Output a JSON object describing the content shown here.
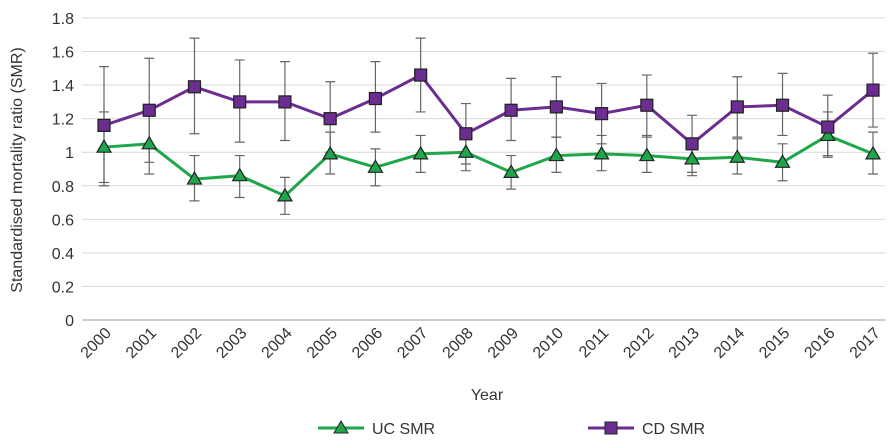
{
  "chart_data": {
    "type": "line",
    "x_label": "Year",
    "y_label": "Standardised mortality ratio (SMR)",
    "categories": [
      "2000",
      "2001",
      "2002",
      "2003",
      "2004",
      "2005",
      "2006",
      "2007",
      "2008",
      "2009",
      "2010",
      "2011",
      "2012",
      "2013",
      "2014",
      "2015",
      "2016",
      "2017"
    ],
    "series": [
      {
        "name": "UC SMR",
        "color": "#1fa64a",
        "marker": "triangle",
        "values": [
          1.03,
          1.05,
          0.84,
          0.86,
          0.74,
          0.99,
          0.91,
          0.99,
          1.0,
          0.88,
          0.98,
          0.99,
          0.98,
          0.96,
          0.97,
          0.94,
          1.1,
          0.99
        ],
        "lower": [
          0.82,
          0.87,
          0.71,
          0.73,
          0.63,
          0.87,
          0.8,
          0.88,
          0.89,
          0.78,
          0.88,
          0.89,
          0.88,
          0.86,
          0.87,
          0.83,
          0.97,
          0.87
        ],
        "upper": [
          1.24,
          1.22,
          0.98,
          0.98,
          0.85,
          1.12,
          1.02,
          1.1,
          1.12,
          0.98,
          1.09,
          1.1,
          1.1,
          1.07,
          1.08,
          1.05,
          1.24,
          1.12
        ]
      },
      {
        "name": "CD SMR",
        "color": "#6b2d90",
        "marker": "square",
        "values": [
          1.16,
          1.25,
          1.39,
          1.3,
          1.3,
          1.2,
          1.32,
          1.46,
          1.11,
          1.25,
          1.27,
          1.23,
          1.28,
          1.05,
          1.27,
          1.28,
          1.15,
          1.37
        ],
        "lower": [
          0.8,
          0.94,
          1.11,
          1.06,
          1.07,
          1.0,
          1.12,
          1.24,
          0.93,
          1.07,
          1.09,
          1.05,
          1.09,
          0.88,
          1.09,
          1.1,
          0.98,
          1.15
        ],
        "upper": [
          1.51,
          1.56,
          1.68,
          1.55,
          1.54,
          1.42,
          1.54,
          1.68,
          1.29,
          1.44,
          1.45,
          1.41,
          1.46,
          1.22,
          1.45,
          1.47,
          1.34,
          1.59
        ]
      }
    ],
    "ylim": [
      0,
      1.8
    ],
    "yticks": [
      0,
      0.2,
      0.4,
      0.6,
      0.8,
      1,
      1.2,
      1.4,
      1.6,
      1.8
    ],
    "grid": true,
    "legend": "bottom"
  }
}
